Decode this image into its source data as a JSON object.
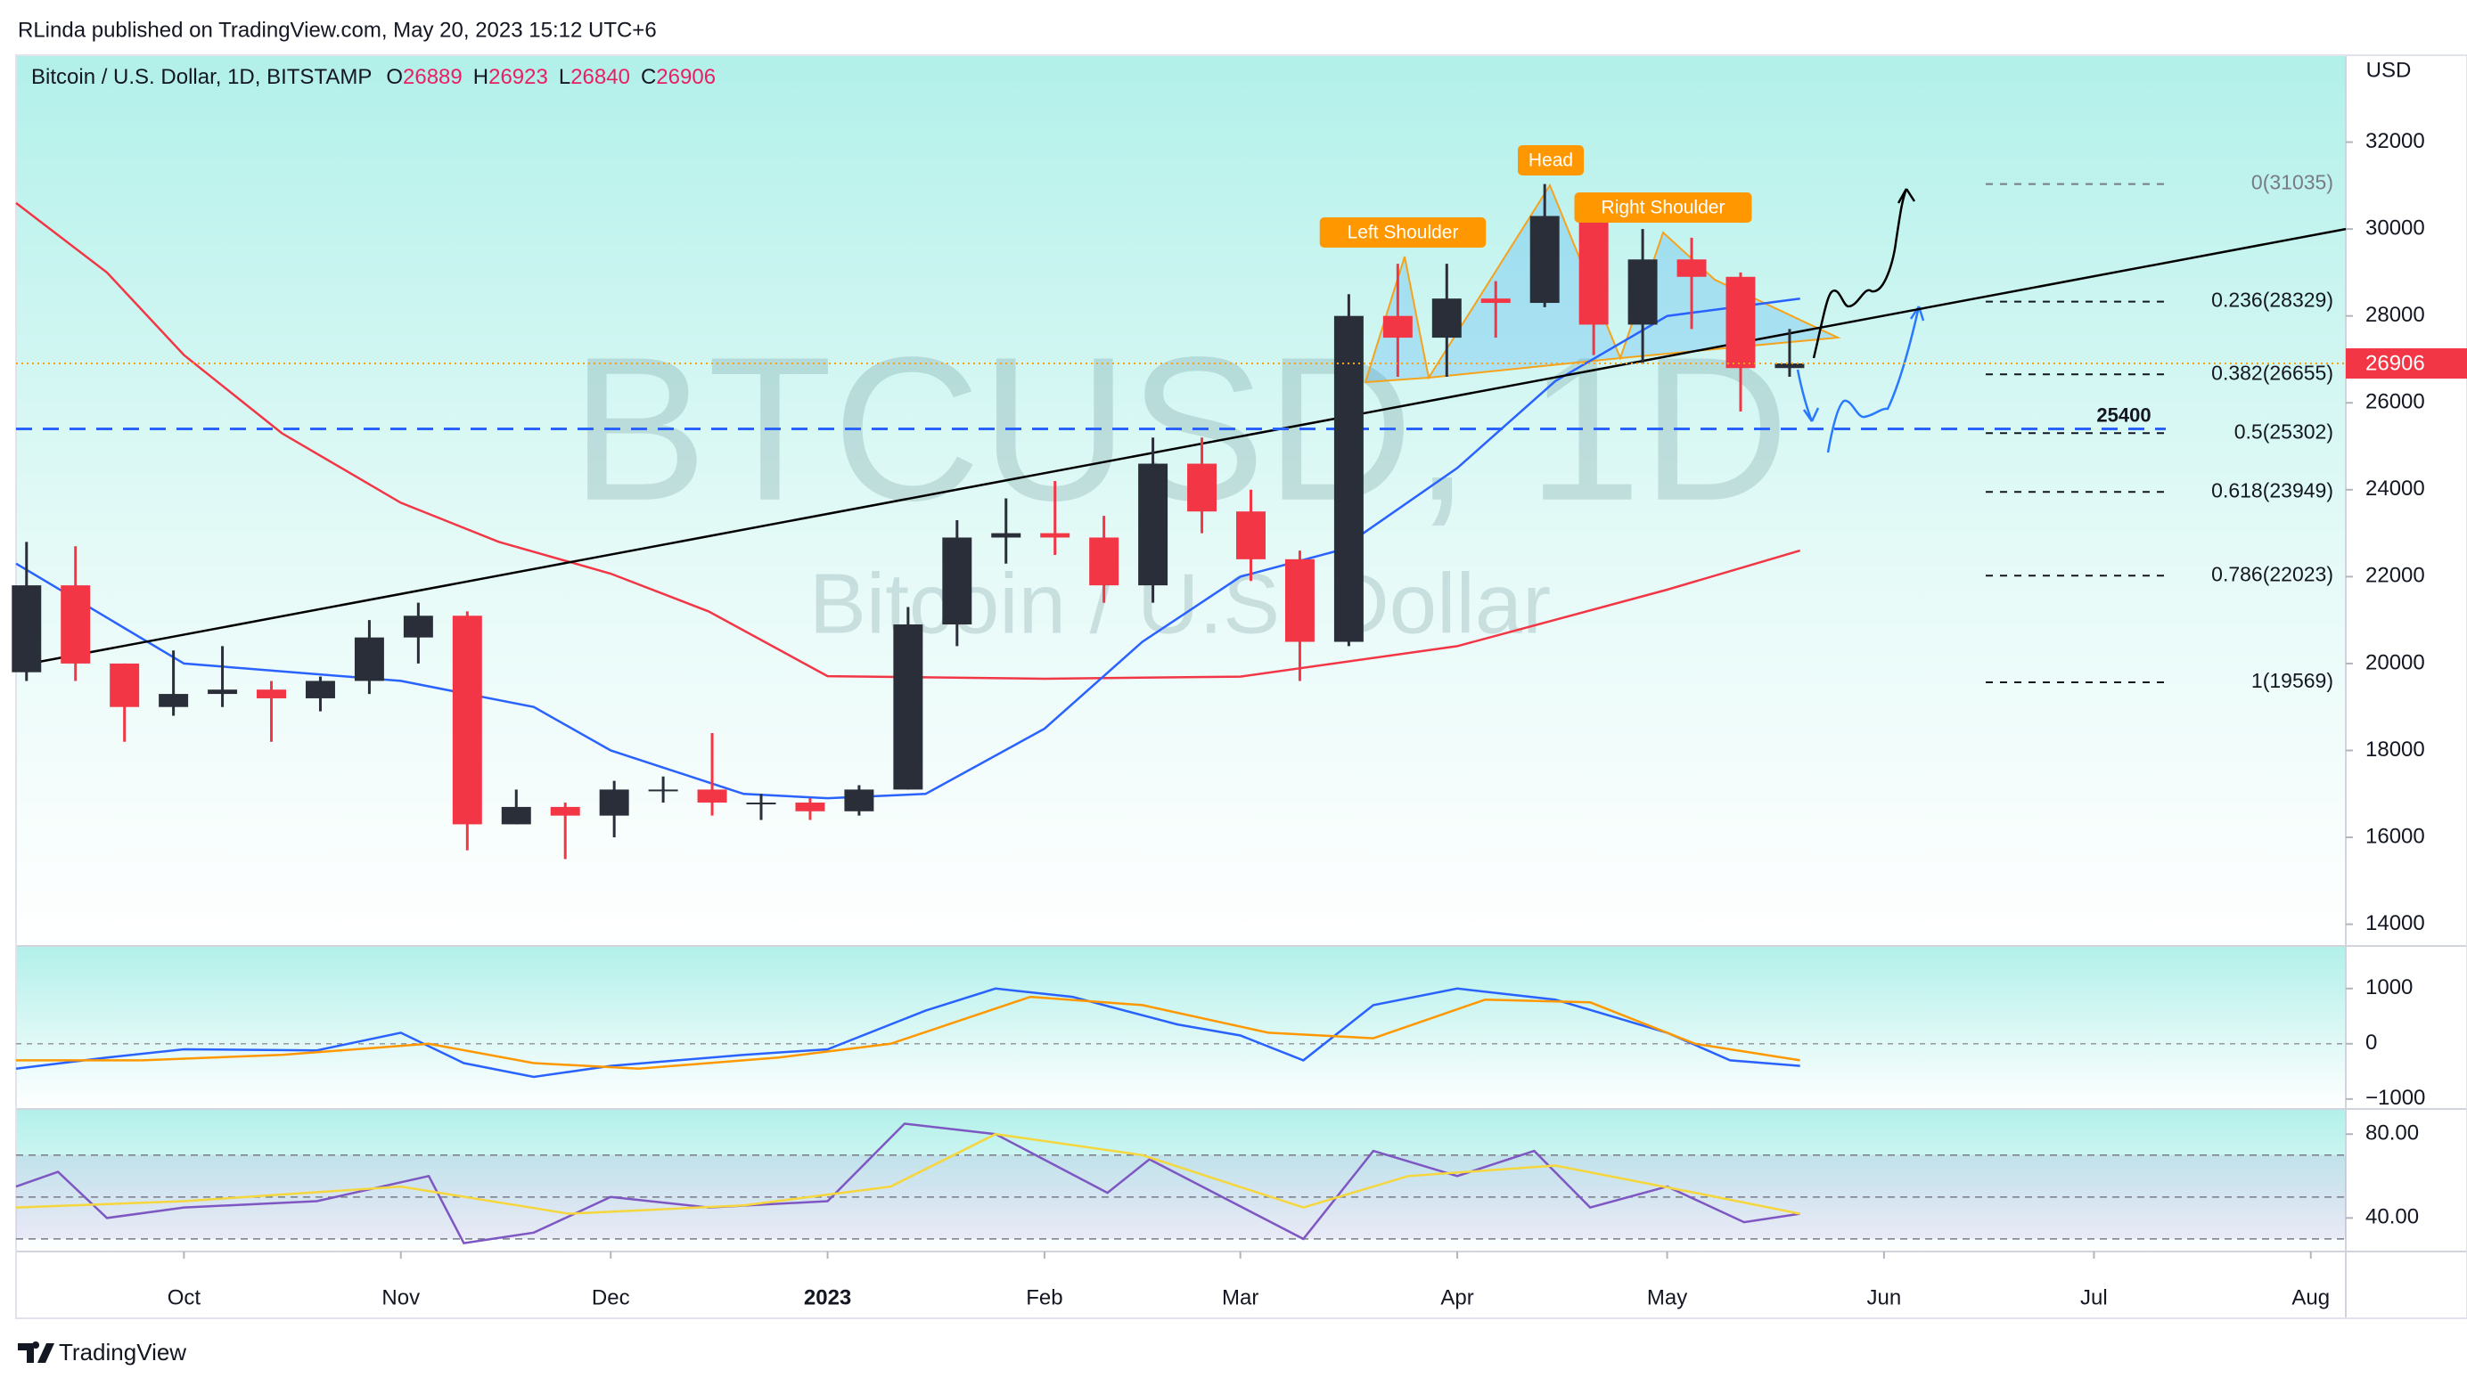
{
  "header": {
    "published": "RLinda published on TradingView.com, May 20, 2023 15:12 UTC+6",
    "brand": "TradingView"
  },
  "chart_data": {
    "type": "candlestick",
    "title": "Bitcoin / U.S. Dollar, 1D, BITSTAMP",
    "ohlc_legend": [
      {
        "label": "O",
        "value": 26889
      },
      {
        "label": "H",
        "value": 26923
      },
      {
        "label": "L",
        "value": 26840
      },
      {
        "label": "C",
        "value": 26906
      }
    ],
    "currency": "USD",
    "watermark": "BTCUSD, 1D",
    "watermark_subtitle": "Bitcoin / U.S. Dollar",
    "up_color": "#2a2e39",
    "down_color": "#f23645",
    "x": [
      "2022-09-05",
      "2022-09-12",
      "2022-09-19",
      "2022-09-26",
      "2022-10-03",
      "2022-10-10",
      "2022-10-17",
      "2022-10-24",
      "2022-10-31",
      "2022-11-07",
      "2022-11-14",
      "2022-11-21",
      "2022-11-28",
      "2022-12-05",
      "2022-12-12",
      "2022-12-19",
      "2022-12-26",
      "2023-01-02",
      "2023-01-09",
      "2023-01-16",
      "2023-01-23",
      "2023-01-30",
      "2023-02-06",
      "2023-02-13",
      "2023-02-20",
      "2023-02-27",
      "2023-03-06",
      "2023-03-13",
      "2023-03-20",
      "2023-03-27",
      "2023-04-03",
      "2023-04-10",
      "2023-04-17",
      "2023-04-24",
      "2023-05-01",
      "2023-05-08",
      "2023-05-15"
    ],
    "open": [
      19800,
      21800,
      20000,
      19000,
      19300,
      19400,
      19200,
      19600,
      20600,
      21100,
      16300,
      16700,
      16500,
      17100,
      17100,
      16800,
      16800,
      16600,
      17100,
      20900,
      22900,
      23000,
      22900,
      21800,
      24600,
      23500,
      22400,
      20500,
      28000,
      27500,
      28400,
      28300,
      30300,
      27800,
      29300,
      28900,
      26800
    ],
    "high": [
      22800,
      22700,
      20000,
      20300,
      20400,
      19600,
      19700,
      21000,
      21400,
      21200,
      17100,
      16800,
      17300,
      17400,
      18400,
      17000,
      16900,
      17200,
      21300,
      23300,
      23800,
      24200,
      23400,
      25200,
      25200,
      24000,
      22600,
      28500,
      29200,
      29200,
      28800,
      31035,
      30500,
      30000,
      29800,
      29000,
      27700
    ],
    "low": [
      19600,
      19600,
      18200,
      18800,
      19000,
      18200,
      18900,
      19300,
      20000,
      15700,
      16300,
      15500,
      16000,
      16800,
      16500,
      16400,
      16400,
      16500,
      17100,
      20400,
      22300,
      22500,
      21400,
      21400,
      23000,
      21900,
      19600,
      20400,
      26600,
      26600,
      27500,
      28200,
      27100,
      26900,
      27700,
      25800,
      26600
    ],
    "close": [
      21800,
      20000,
      19000,
      19300,
      19400,
      19200,
      19600,
      20600,
      21100,
      16300,
      16700,
      16500,
      17100,
      17100,
      16800,
      16800,
      16600,
      17100,
      20900,
      22900,
      23000,
      22900,
      21800,
      24600,
      23500,
      22400,
      20500,
      28000,
      27500,
      28400,
      28300,
      30300,
      27800,
      29300,
      28900,
      26800,
      26906
    ],
    "moving_averages": [
      {
        "color": "#f23645",
        "x": [
          "2022-09-07",
          "2022-09-20",
          "2022-10-01",
          "2022-10-15",
          "2022-11-01",
          "2022-11-15",
          "2022-12-01",
          "2022-12-15",
          "2023-01-01",
          "2023-02-01",
          "2023-03-01",
          "2023-04-01",
          "2023-05-01",
          "2023-05-20"
        ],
        "values": [
          30600,
          29000,
          27100,
          25300,
          23700,
          22800,
          22070,
          21200,
          19710,
          19650,
          19700,
          20400,
          21700,
          22600
        ]
      },
      {
        "color": "#2962ff",
        "x": [
          "2022-09-07",
          "2022-10-01",
          "2022-11-01",
          "2022-11-20",
          "2022-12-01",
          "2022-12-20",
          "2023-01-01",
          "2023-01-15",
          "2023-02-01",
          "2023-02-15",
          "2023-03-01",
          "2023-03-15",
          "2023-04-01",
          "2023-04-15",
          "2023-05-01",
          "2023-05-20"
        ],
        "values": [
          22300,
          20000,
          19600,
          19000,
          18000,
          17000,
          16900,
          17000,
          18500,
          20500,
          22000,
          22600,
          24500,
          26500,
          28000,
          28400
        ]
      }
    ],
    "trendline": {
      "color": "#000000",
      "x": [
        "2022-09-09",
        "2023-08-06"
      ],
      "values": [
        20000,
        30000
      ]
    },
    "fib_levels": [
      {
        "label": "0(31035)",
        "value": 31035
      },
      {
        "label": "0.236(28329)",
        "value": 28329
      },
      {
        "label": "0.382(26655)",
        "value": 26655
      },
      {
        "label": "0.5(25302)",
        "value": 25302
      },
      {
        "label": "0.618(23949)",
        "value": 23949
      },
      {
        "label": "0.786(22023)",
        "value": 22023
      },
      {
        "label": "1(19569)",
        "value": 19569
      }
    ],
    "level": {
      "label": "25400",
      "value": 25400,
      "color": "#2962ff"
    },
    "annotations": [
      "Left Shoulder",
      "Head",
      "Right Shoulder"
    ],
    "xlim": [
      "2022-09-07",
      "2023-08-06"
    ],
    "xticks": [
      {
        "value": "2022-10-01",
        "label": "Oct"
      },
      {
        "value": "2022-11-01",
        "label": "Nov"
      },
      {
        "value": "2022-12-01",
        "label": "Dec"
      },
      {
        "value": "2023-01-01",
        "label": "2023"
      },
      {
        "value": "2023-02-01",
        "label": "Feb"
      },
      {
        "value": "2023-03-01",
        "label": "Mar"
      },
      {
        "value": "2023-04-01",
        "label": "Apr"
      },
      {
        "value": "2023-05-01",
        "label": "May"
      },
      {
        "value": "2023-06-01",
        "label": "Jun"
      },
      {
        "value": "2023-07-01",
        "label": "Jul"
      },
      {
        "value": "2023-08-01",
        "label": "Aug"
      }
    ],
    "ylim": [
      13500,
      34000
    ],
    "yticks": [
      14000,
      16000,
      18000,
      20000,
      22000,
      24000,
      26000,
      28000,
      30000,
      32000
    ]
  },
  "macd": {
    "type": "line",
    "ylim": [
      -1180,
      1770
    ],
    "yticks": [
      1000,
      0,
      {
        "value": -1000,
        "label": "−1000"
      }
    ],
    "series": [
      {
        "color": "#2962ff",
        "x": [
          "2022-09-07",
          "2022-09-20",
          "2022-10-01",
          "2022-10-20",
          "2022-11-01",
          "2022-11-10",
          "2022-11-20",
          "2022-12-01",
          "2022-12-20",
          "2023-01-01",
          "2023-01-15",
          "2023-01-25",
          "2023-02-05",
          "2023-02-20",
          "2023-03-01",
          "2023-03-10",
          "2023-03-20",
          "2023-04-01",
          "2023-04-15",
          "2023-05-01",
          "2023-05-10",
          "2023-05-20"
        ],
        "values": [
          -450,
          -250,
          -100,
          -120,
          200,
          -350,
          -600,
          -400,
          -200,
          -100,
          600,
          1000,
          850,
          350,
          150,
          -300,
          700,
          1000,
          800,
          200,
          -300,
          -400
        ]
      },
      {
        "color": "#ff9800",
        "x": [
          "2022-09-07",
          "2022-09-25",
          "2022-10-15",
          "2022-11-05",
          "2022-11-20",
          "2022-12-05",
          "2022-12-25",
          "2023-01-10",
          "2023-01-30",
          "2023-02-15",
          "2023-03-05",
          "2023-03-20",
          "2023-04-05",
          "2023-04-20",
          "2023-05-05",
          "2023-05-20"
        ],
        "values": [
          -300,
          -300,
          -200,
          0,
          -350,
          -450,
          -250,
          0,
          850,
          700,
          200,
          100,
          800,
          750,
          0,
          -300
        ]
      }
    ]
  },
  "rsi": {
    "type": "line",
    "ylim": [
      24,
      92
    ],
    "yticks": [
      {
        "value": 80,
        "label": "80.00"
      },
      {
        "value": 40,
        "label": "40.00"
      }
    ],
    "band_levels": [
      70,
      50,
      30
    ],
    "series": [
      {
        "color": "#7e57c2",
        "x": [
          "2022-09-07",
          "2022-09-13",
          "2022-09-20",
          "2022-10-01",
          "2022-10-20",
          "2022-11-05",
          "2022-11-10",
          "2022-11-20",
          "2022-12-01",
          "2022-12-15",
          "2023-01-01",
          "2023-01-12",
          "2023-01-25",
          "2023-02-10",
          "2023-02-16",
          "2023-03-10",
          "2023-03-20",
          "2023-04-01",
          "2023-04-12",
          "2023-04-20",
          "2023-05-01",
          "2023-05-12",
          "2023-05-20"
        ],
        "values": [
          55,
          62,
          40,
          45,
          48,
          60,
          28,
          33,
          50,
          45,
          48,
          85,
          80,
          52,
          68,
          30,
          72,
          60,
          72,
          45,
          55,
          38,
          42
        ]
      },
      {
        "color": "#f5d63d",
        "x": [
          "2022-09-07",
          "2022-10-01",
          "2022-11-01",
          "2022-11-25",
          "2022-12-20",
          "2023-01-10",
          "2023-01-25",
          "2023-02-15",
          "2023-03-10",
          "2023-03-25",
          "2023-04-15",
          "2023-05-05",
          "2023-05-20"
        ],
        "values": [
          45,
          48,
          55,
          42,
          46,
          55,
          80,
          70,
          45,
          60,
          65,
          52,
          42
        ]
      }
    ]
  }
}
